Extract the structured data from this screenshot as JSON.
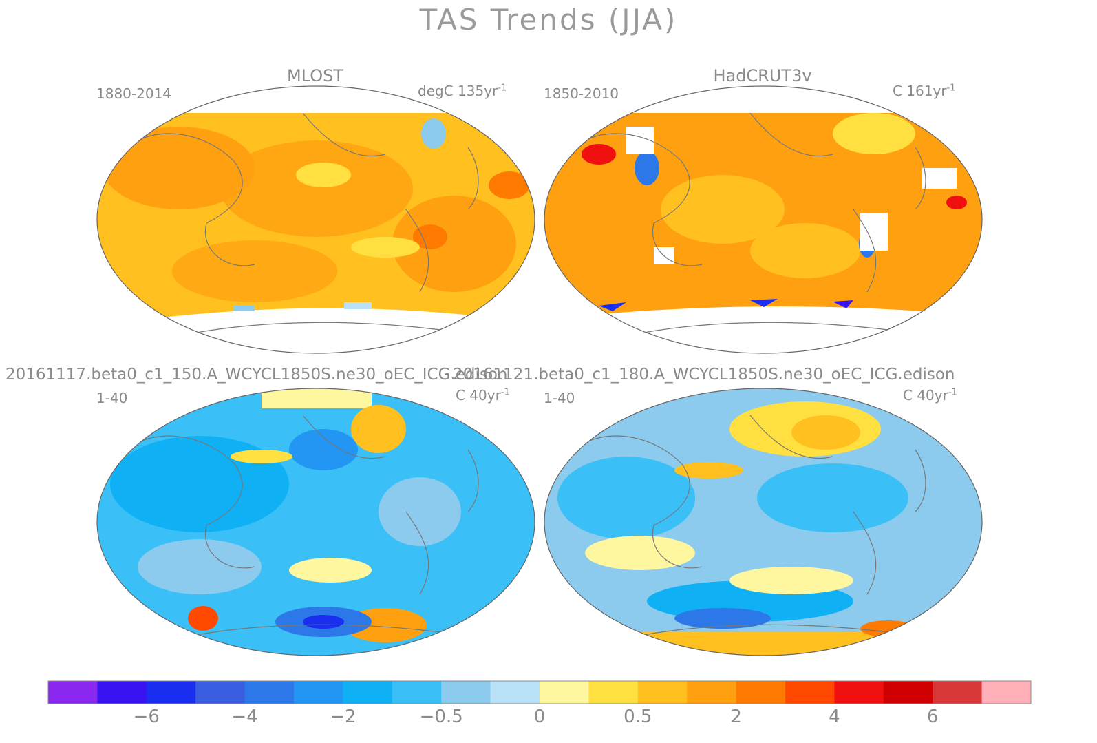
{
  "figure_title": "TAS Trends (JJA)",
  "panels": [
    {
      "id": "mlost",
      "title": "MLOST",
      "period": "1880-2014",
      "units_prefix": "degC 135yr",
      "units_sup": "-1",
      "scheme": "warm"
    },
    {
      "id": "hadcrut",
      "title": "HadCRUT3v",
      "period": "1850-2010",
      "units_prefix": "C 161yr",
      "units_sup": "-1",
      "scheme": "warm-gappy"
    },
    {
      "id": "beta0_150",
      "title": "20161117.beta0_c1_150.A_WCYCL1850S.ne30_oEC_ICG.edison",
      "period": "1-40",
      "units_prefix": "C 40yr",
      "units_sup": "-1",
      "scheme": "cool"
    },
    {
      "id": "beta0_180",
      "title": "20161121.beta0_c1_180.A_WCYCL1850S.ne30_oEC_ICG.edison",
      "period": "1-40",
      "units_prefix": "C 40yr",
      "units_sup": "-1",
      "scheme": "mixed"
    }
  ],
  "colorbar": {
    "colors": [
      "#8b28f0",
      "#3a14f0",
      "#1a2ef0",
      "#3a5ee0",
      "#2c78e8",
      "#2296f2",
      "#10b0f5",
      "#3ac0f6",
      "#8ccbee",
      "#b8e0f6",
      "#fff6a0",
      "#ffe040",
      "#ffc020",
      "#ffa010",
      "#ff7a00",
      "#ff4800",
      "#f01010",
      "#d00000",
      "#d83838",
      "#ffb0b8"
    ],
    "tick_labels": [
      "−6",
      "−4",
      "−2",
      "−0.5",
      "0",
      "0.5",
      "2",
      "4",
      "6"
    ]
  }
}
